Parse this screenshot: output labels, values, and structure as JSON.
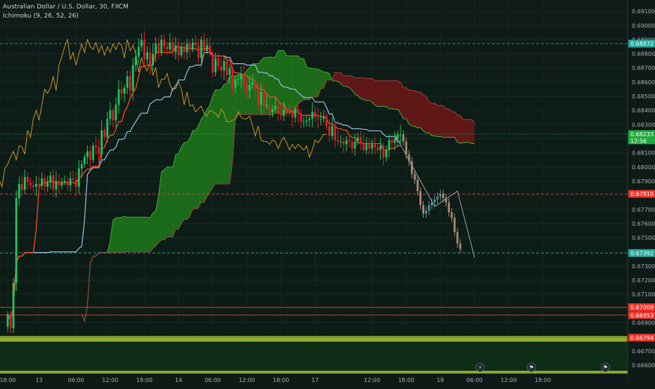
{
  "legend": {
    "symbol": "Australian Dollar / U.S. Dollar, 30, FXCM",
    "indicator": "Ichimoku (9, 26, 52, 26)"
  },
  "colors": {
    "background": "#0e1a17",
    "bull_candle": "#22c55e",
    "bear_candle": "#e11d2a",
    "projection_candle": "#8a8f8f",
    "tenkan": "#ff4a1c",
    "kijun": "#8fb8d8",
    "chikou": "#c8962a",
    "cloud_bull": "#1f7a1a",
    "cloud_bear": "#6e1818",
    "level_green": "#26a69a",
    "level_red": "#ff3b30",
    "support_band": "#9acd32"
  },
  "chart_data": {
    "type": "candlestick",
    "symbol": "AUD/USD",
    "timeframe": "30",
    "ylim": [
      0.6655,
      0.6918
    ],
    "y_ticks": [
      0.691,
      0.69,
      0.689,
      0.688,
      0.687,
      0.686,
      0.685,
      0.684,
      0.683,
      0.682,
      0.681,
      0.68,
      0.679,
      0.678,
      0.677,
      0.676,
      0.675,
      0.674,
      0.673,
      0.672,
      0.671,
      0.67,
      0.669,
      0.668,
      0.667,
      0.666
    ],
    "y_tick_labels": [
      "0.69100",
      "0.69000",
      "0.68900",
      "0.68800",
      "0.68700",
      "0.68600",
      "0.68500",
      "0.68400",
      "0.68300",
      "0.68200",
      "0.68100",
      "0.68000",
      "0.67900",
      "0.67800",
      "0.67700",
      "0.67600",
      "0.67500",
      "0.67400",
      "0.67300",
      "0.67200",
      "0.67100",
      "0.67000",
      "0.66900",
      "0.66800",
      "0.66700",
      "0.66600"
    ],
    "x_labels": [
      "18:00",
      "13",
      "06:00",
      "12:00",
      "18:00",
      "14",
      "06:00",
      "12:00",
      "18:00",
      "17",
      "12:00",
      "18:00",
      "18",
      "06:00",
      "12:00",
      "18:00"
    ],
    "x_label_index": [
      0,
      11,
      24,
      36,
      48,
      60,
      72,
      84,
      96,
      108,
      128,
      140,
      152,
      164,
      176,
      188
    ],
    "last_price_label": "0.68233",
    "countdown": "12:56",
    "price_levels": [
      {
        "value": 0.68872,
        "label": "0.68872",
        "style": "green-dashed"
      },
      {
        "value": 0.6781,
        "label": "0.67810",
        "style": "red-dashed"
      },
      {
        "value": 0.67392,
        "label": "0.67392",
        "style": "green-dashed"
      },
      {
        "value": 0.67009,
        "label": "0.67009",
        "style": "red-solid"
      },
      {
        "value": 0.66953,
        "label": "0.66953",
        "style": "red-solid"
      },
      {
        "value": 0.66794,
        "label": "0.66794",
        "style": "red-solid"
      }
    ],
    "support_band": [
      0.66765,
      0.66805
    ],
    "candle_closes": [
      0.6696,
      0.6686,
      0.6718,
      0.6778,
      0.6788,
      0.6784,
      0.6793,
      0.6789,
      0.6787,
      0.6786,
      0.6788,
      0.6787,
      0.6792,
      0.6786,
      0.6789,
      0.6794,
      0.6784,
      0.679,
      0.6787,
      0.6789,
      0.679,
      0.6787,
      0.6792,
      0.6791,
      0.6786,
      0.6799,
      0.6802,
      0.6807,
      0.6811,
      0.6805,
      0.6815,
      0.6814,
      0.6809,
      0.6826,
      0.6821,
      0.6834,
      0.684,
      0.6833,
      0.6844,
      0.6855,
      0.6852,
      0.6856,
      0.6864,
      0.6854,
      0.6872,
      0.6878,
      0.6885,
      0.689,
      0.6876,
      0.6881,
      0.6872,
      0.688,
      0.6887,
      0.6881,
      0.689,
      0.6885,
      0.6883,
      0.6888,
      0.6881,
      0.6886,
      0.6879,
      0.6885,
      0.6881,
      0.6887,
      0.6883,
      0.6888,
      0.6886,
      0.6877,
      0.689,
      0.6882,
      0.6886,
      0.688,
      0.6867,
      0.6877,
      0.6871,
      0.6868,
      0.6875,
      0.6865,
      0.687,
      0.6856,
      0.6862,
      0.6862,
      0.6866,
      0.6858,
      0.6854,
      0.6858,
      0.686,
      0.6855,
      0.6844,
      0.6853,
      0.6843,
      0.6844,
      0.6839,
      0.6841,
      0.6843,
      0.6838,
      0.6836,
      0.684,
      0.6839,
      0.6838,
      0.6835,
      0.6841,
      0.6838,
      0.6832,
      0.6832,
      0.6833,
      0.6834,
      0.6839,
      0.6835,
      0.6834,
      0.6834,
      0.6836,
      0.6829,
      0.6822,
      0.6829,
      0.6819,
      0.6818,
      0.6818,
      0.6816,
      0.6819,
      0.6818,
      0.6813,
      0.6818,
      0.6821,
      0.6817,
      0.6812,
      0.6816,
      0.6813,
      0.6816,
      0.6814,
      0.6812,
      0.6815,
      0.6807,
      0.6812,
      0.6819,
      0.6817,
      0.682,
      0.6823,
      0.6823
    ],
    "projection_closes": [
      0.6818,
      0.6809,
      0.6804,
      0.6795,
      0.6791,
      0.6783,
      0.6773,
      0.6767,
      0.6769,
      0.6773,
      0.6775,
      0.6777,
      0.6779,
      0.6781,
      0.6778,
      0.6775,
      0.6768,
      0.6764,
      0.6754,
      0.6746,
      0.6742
    ],
    "projection_path": [
      [
        136,
        0.6823
      ],
      [
        150,
        0.6772
      ],
      [
        158,
        0.6783
      ],
      [
        164,
        0.6736
      ]
    ]
  }
}
